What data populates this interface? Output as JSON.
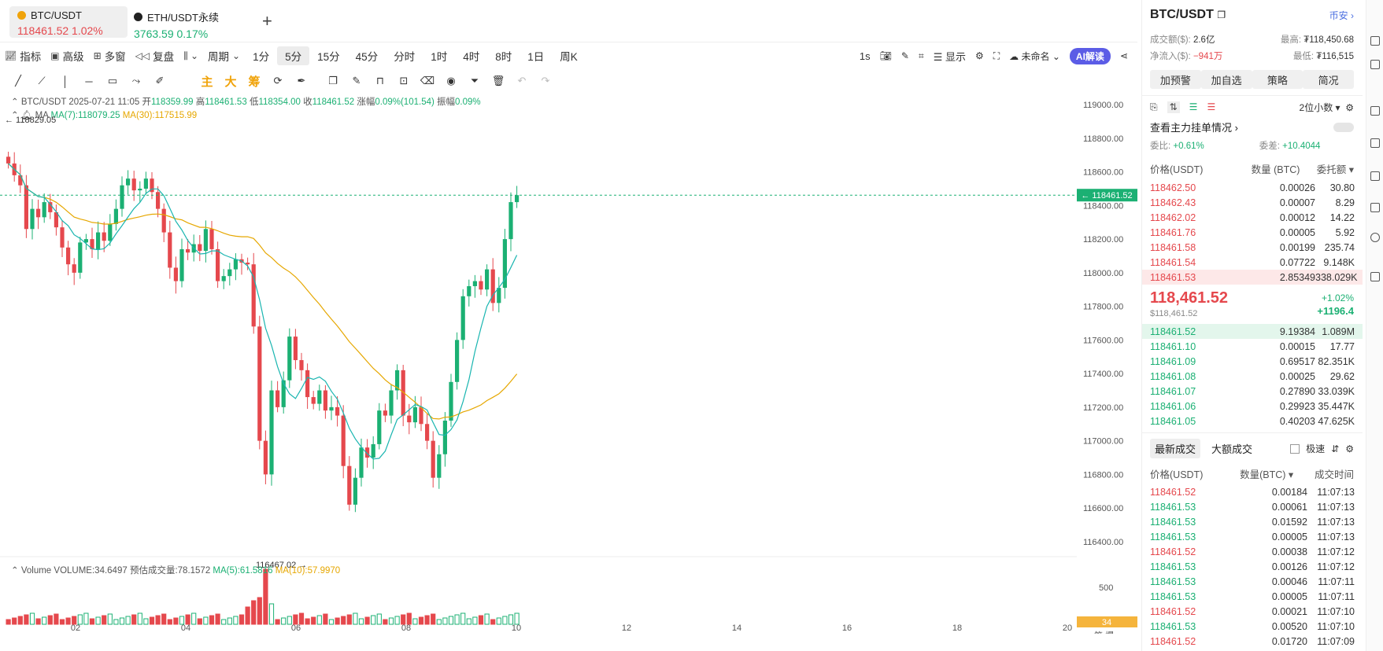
{
  "tabs": [
    {
      "symbol": "BTC/USDT",
      "price": "118461.52",
      "change": "1.02%",
      "icon_color": "#f0a30a"
    },
    {
      "symbol": "ETH/USDT永续",
      "price": "3763.59",
      "change": "0.17%",
      "icon_color": "#222222"
    }
  ],
  "add_tab": "+",
  "toolbar1": {
    "indicator": "指标",
    "advanced": "高级",
    "multi": "多窗",
    "replay": "复盘",
    "period": "周期",
    "intervals": [
      "1分",
      "5分",
      "15分",
      "45分",
      "分时",
      "1时",
      "4时",
      "8时",
      "1日",
      "周K"
    ],
    "active_interval": "5分",
    "seconds": "1s",
    "display": "显示",
    "unnamed": "未命名",
    "ai": "AI解读"
  },
  "toolbar2": {
    "main": "主",
    "big": "大",
    "chip": "筹"
  },
  "chart_info": {
    "pair": "BTC/USDT",
    "time": "2025-07-21 11:05",
    "open_label": "开",
    "open": "118359.99",
    "high_label": "高",
    "high": "118461.53",
    "low_label": "低",
    "low": "118354.00",
    "close_label": "收",
    "close": "118461.52",
    "chg_label": "涨幅",
    "chg": "0.09%(101.54)",
    "amp_label": "振幅",
    "amp": "0.09%",
    "ma_label": "MA",
    "ma7": "MA(7):118079.25",
    "ma30": "MA(30):117515.99",
    "max_marker": "118829.05",
    "min_marker": "116467.02",
    "current_price_tag": "118461.52"
  },
  "volume_info": {
    "label": "Volume",
    "volume": "VOLUME:34.6497",
    "est": "预估成交量:78.1572",
    "ma5": "MA(5):61.5816",
    "ma10": "MA(10):57.9970",
    "axis_500": "500",
    "current_tag": "34"
  },
  "bottom_labels": {
    "chip": "筹",
    "burst": "爆"
  },
  "colors": {
    "up": "#1bb073",
    "down": "#e5484d",
    "ma30": "#e6a700",
    "ma7": "#19b5b0",
    "accent": "#5b5ce6"
  },
  "chart_data": {
    "type": "candlestick",
    "x_ticks": [
      "02",
      "04",
      "06",
      "08",
      "10",
      "12",
      "14",
      "16",
      "18",
      "20"
    ],
    "y_ticks": [
      "119000.00",
      "118800.00",
      "118600.00",
      "118400.00",
      "118200.00",
      "118000.00",
      "117800.00",
      "117600.00",
      "117400.00",
      "117200.00",
      "117000.00",
      "116800.00",
      "116600.00",
      "116400.00"
    ],
    "ylim": [
      116320,
      119080
    ],
    "current": 118461.52,
    "closes": [
      118650,
      118580,
      118520,
      118260,
      118380,
      118330,
      118420,
      118360,
      118270,
      118150,
      118050,
      118000,
      118180,
      118200,
      118140,
      118240,
      118190,
      118290,
      118380,
      118520,
      118560,
      118490,
      118500,
      118560,
      118480,
      118380,
      118240,
      118030,
      117950,
      118140,
      118120,
      118170,
      118130,
      118260,
      118140,
      117950,
      117980,
      118020,
      118080,
      118060,
      118050,
      117680,
      117000,
      116800,
      117300,
      117200,
      117360,
      117620,
      117480,
      117420,
      117260,
      117220,
      117300,
      117180,
      117200,
      117150,
      116850,
      116620,
      116780,
      116960,
      116900,
      116980,
      117180,
      117150,
      117300,
      117420,
      117150,
      117110,
      117200,
      117100,
      117000,
      116780,
      116920,
      117120,
      117350,
      117600,
      117860,
      117920,
      117950,
      117900,
      118020,
      117820,
      117910,
      118200,
      118420,
      118461.52
    ],
    "volume_note": "vol spike near 06"
  },
  "right_panel": {
    "symbol": "BTC/USDT",
    "exchange": "币安",
    "turnover_label": "成交额($):",
    "turnover": "2.6亿",
    "high_label": "最高:",
    "high": "₮118,450.68",
    "inflow_label": "净流入($):",
    "inflow": "−941万",
    "low_label": "最低:",
    "low": "₮116,515",
    "buttons": [
      "加预警",
      "加自选",
      "策略",
      "简况"
    ],
    "decimals": "2位小数",
    "main_orders": "查看主力挂单情况",
    "ratio_label": "委比:",
    "ratio": "+0.61%",
    "diff_label": "委差:",
    "diff": "+10.4044",
    "ob_headers": [
      "价格(USDT)",
      "数量 (BTC)",
      "委托额"
    ],
    "asks": [
      {
        "p": "118462.50",
        "q": "0.00026",
        "t": "30.80"
      },
      {
        "p": "118462.43",
        "q": "0.00007",
        "t": "8.29"
      },
      {
        "p": "118462.02",
        "q": "0.00012",
        "t": "14.22"
      },
      {
        "p": "118461.76",
        "q": "0.00005",
        "t": "5.92"
      },
      {
        "p": "118461.58",
        "q": "0.00199",
        "t": "235.74"
      },
      {
        "p": "118461.54",
        "q": "0.07722",
        "t": "9.148K"
      },
      {
        "p": "118461.53",
        "q": "2.85349",
        "t": "338.029K"
      }
    ],
    "last_price": "118,461.52",
    "last_usd": "$118,461.52",
    "last_pct": "+1.02%",
    "last_change": "+1196.4",
    "bids": [
      {
        "p": "118461.52",
        "q": "9.19384",
        "t": "1.089M"
      },
      {
        "p": "118461.10",
        "q": "0.00015",
        "t": "17.77"
      },
      {
        "p": "118461.09",
        "q": "0.69517",
        "t": "82.351K"
      },
      {
        "p": "118461.08",
        "q": "0.00025",
        "t": "29.62"
      },
      {
        "p": "118461.07",
        "q": "0.27890",
        "t": "33.039K"
      },
      {
        "p": "118461.06",
        "q": "0.29923",
        "t": "35.447K"
      },
      {
        "p": "118461.05",
        "q": "0.40203",
        "t": "47.625K"
      }
    ],
    "trade_tabs": [
      "最新成交",
      "大额成交"
    ],
    "fast": "极速",
    "tr_headers": [
      "价格(USDT)",
      "数量(BTC)",
      "成交时间"
    ],
    "trades": [
      {
        "p": "118461.52",
        "q": "0.00184",
        "t": "11:07:13",
        "side": "down"
      },
      {
        "p": "118461.53",
        "q": "0.00061",
        "t": "11:07:13",
        "side": "up"
      },
      {
        "p": "118461.53",
        "q": "0.01592",
        "t": "11:07:13",
        "side": "up"
      },
      {
        "p": "118461.53",
        "q": "0.00005",
        "t": "11:07:13",
        "side": "up"
      },
      {
        "p": "118461.52",
        "q": "0.00038",
        "t": "11:07:12",
        "side": "down"
      },
      {
        "p": "118461.53",
        "q": "0.00126",
        "t": "11:07:12",
        "side": "up"
      },
      {
        "p": "118461.53",
        "q": "0.00046",
        "t": "11:07:11",
        "side": "up"
      },
      {
        "p": "118461.53",
        "q": "0.00005",
        "t": "11:07:11",
        "side": "up"
      },
      {
        "p": "118461.52",
        "q": "0.00021",
        "t": "11:07:10",
        "side": "down"
      },
      {
        "p": "118461.53",
        "q": "0.00520",
        "t": "11:07:10",
        "side": "up"
      },
      {
        "p": "118461.52",
        "q": "0.01720",
        "t": "11:07:09",
        "side": "down"
      }
    ]
  }
}
